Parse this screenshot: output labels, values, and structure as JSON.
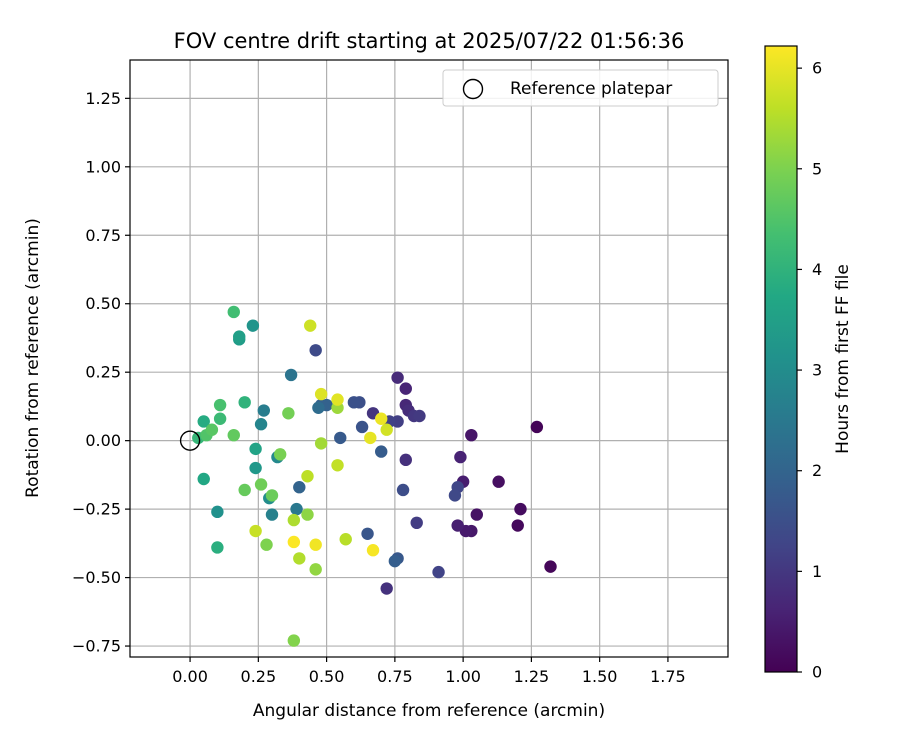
{
  "chart_data": {
    "type": "scatter",
    "title": "FOV centre drift starting at 2025/07/22 01:56:36",
    "xlabel": "Angular distance from reference (arcmin)",
    "ylabel": "Rotation from reference (arcmin)",
    "xlim": [
      -0.22,
      1.97
    ],
    "ylim": [
      -0.79,
      1.39
    ],
    "x_ticks": [
      0.0,
      0.25,
      0.5,
      0.75,
      1.0,
      1.25,
      1.5,
      1.75
    ],
    "x_tick_labels": [
      "0.00",
      "0.25",
      "0.50",
      "0.75",
      "1.00",
      "1.25",
      "1.50",
      "1.75"
    ],
    "y_ticks": [
      1.25,
      1.0,
      0.75,
      0.5,
      0.25,
      0.0,
      -0.25,
      -0.5,
      -0.75
    ],
    "y_tick_labels": [
      "1.25",
      "1.00",
      "0.75",
      "0.50",
      "0.25",
      "0.00",
      "−0.25",
      "−0.50",
      "−0.75"
    ],
    "grid": true,
    "legend": {
      "placement": "top-right",
      "entries": [
        "Reference platepar"
      ]
    },
    "reference_point": {
      "x": 0.0,
      "y": 0.0
    },
    "colorbar": {
      "label": "Hours from first FF file",
      "range": [
        0,
        6.22
      ],
      "ticks": [
        0,
        1,
        2,
        3,
        4,
        5,
        6
      ],
      "tick_labels": [
        "0",
        "1",
        "2",
        "3",
        "4",
        "5",
        "6"
      ],
      "colormap": "viridis"
    },
    "points": [
      {
        "x": 1.27,
        "y": 0.05,
        "h": 0.05
      },
      {
        "x": 1.32,
        "y": -0.46,
        "h": 0.1
      },
      {
        "x": 1.2,
        "y": -0.31,
        "h": 0.15
      },
      {
        "x": 1.21,
        "y": -0.25,
        "h": 0.2
      },
      {
        "x": 1.13,
        "y": -0.15,
        "h": 0.25
      },
      {
        "x": 1.05,
        "y": -0.27,
        "h": 0.3
      },
      {
        "x": 1.03,
        "y": 0.02,
        "h": 0.35
      },
      {
        "x": 1.03,
        "y": -0.33,
        "h": 0.4
      },
      {
        "x": 1.01,
        "y": -0.33,
        "h": 0.45
      },
      {
        "x": 1.0,
        "y": -0.15,
        "h": 0.5
      },
      {
        "x": 0.98,
        "y": -0.31,
        "h": 0.55
      },
      {
        "x": 0.99,
        "y": -0.06,
        "h": 0.6
      },
      {
        "x": 0.79,
        "y": 0.19,
        "h": 0.65
      },
      {
        "x": 0.79,
        "y": 0.13,
        "h": 0.7
      },
      {
        "x": 0.76,
        "y": 0.23,
        "h": 0.75
      },
      {
        "x": 0.8,
        "y": 0.11,
        "h": 0.8
      },
      {
        "x": 0.79,
        "y": -0.07,
        "h": 0.85
      },
      {
        "x": 0.72,
        "y": -0.54,
        "h": 0.9
      },
      {
        "x": 0.67,
        "y": 0.1,
        "h": 0.95
      },
      {
        "x": 0.82,
        "y": 0.09,
        "h": 1.0
      },
      {
        "x": 0.84,
        "y": 0.09,
        "h": 1.05
      },
      {
        "x": 0.83,
        "y": -0.3,
        "h": 1.1
      },
      {
        "x": 0.76,
        "y": 0.07,
        "h": 1.15
      },
      {
        "x": 0.73,
        "y": 0.07,
        "h": 1.2
      },
      {
        "x": 0.91,
        "y": -0.48,
        "h": 1.25
      },
      {
        "x": 0.98,
        "y": -0.17,
        "h": 1.3
      },
      {
        "x": 0.97,
        "y": -0.2,
        "h": 1.35
      },
      {
        "x": 0.46,
        "y": 0.33,
        "h": 1.4
      },
      {
        "x": 0.78,
        "y": -0.18,
        "h": 1.45
      },
      {
        "x": 0.62,
        "y": 0.14,
        "h": 1.5
      },
      {
        "x": 0.6,
        "y": 0.14,
        "h": 1.55
      },
      {
        "x": 0.63,
        "y": 0.05,
        "h": 1.6
      },
      {
        "x": 0.65,
        "y": -0.34,
        "h": 1.65
      },
      {
        "x": 0.76,
        "y": -0.43,
        "h": 1.7
      },
      {
        "x": 0.55,
        "y": 0.01,
        "h": 1.75
      },
      {
        "x": 0.7,
        "y": -0.04,
        "h": 1.8
      },
      {
        "x": 0.75,
        "y": -0.44,
        "h": 1.85
      },
      {
        "x": 0.48,
        "y": 0.13,
        "h": 1.9
      },
      {
        "x": 0.5,
        "y": 0.13,
        "h": 1.95
      },
      {
        "x": 0.4,
        "y": -0.17,
        "h": 2.0
      },
      {
        "x": 0.47,
        "y": 0.12,
        "h": 2.2
      },
      {
        "x": 0.37,
        "y": 0.24,
        "h": 2.4
      },
      {
        "x": 0.39,
        "y": -0.25,
        "h": 2.5
      },
      {
        "x": 0.27,
        "y": 0.11,
        "h": 2.6
      },
      {
        "x": 0.3,
        "y": -0.27,
        "h": 2.7
      },
      {
        "x": 0.26,
        "y": 0.06,
        "h": 2.8
      },
      {
        "x": 0.32,
        "y": -0.06,
        "h": 2.9
      },
      {
        "x": 0.29,
        "y": -0.21,
        "h": 3.0
      },
      {
        "x": 0.1,
        "y": -0.26,
        "h": 3.1
      },
      {
        "x": 0.23,
        "y": 0.42,
        "h": 3.2
      },
      {
        "x": 0.24,
        "y": -0.1,
        "h": 3.3
      },
      {
        "x": 0.18,
        "y": 0.37,
        "h": 3.4
      },
      {
        "x": 0.18,
        "y": 0.38,
        "h": 3.5
      },
      {
        "x": 0.24,
        "y": -0.03,
        "h": 3.6
      },
      {
        "x": 0.05,
        "y": -0.14,
        "h": 3.7
      },
      {
        "x": 0.05,
        "y": 0.07,
        "h": 3.8
      },
      {
        "x": 0.1,
        "y": -0.39,
        "h": 3.9
      },
      {
        "x": 0.2,
        "y": 0.14,
        "h": 4.0
      },
      {
        "x": 0.03,
        "y": 0.01,
        "h": 4.1
      },
      {
        "x": 0.11,
        "y": 0.08,
        "h": 4.2
      },
      {
        "x": 0.16,
        "y": 0.47,
        "h": 4.3
      },
      {
        "x": 0.11,
        "y": 0.13,
        "h": 4.4
      },
      {
        "x": 0.06,
        "y": 0.02,
        "h": 4.5
      },
      {
        "x": 0.08,
        "y": 0.04,
        "h": 4.6
      },
      {
        "x": 0.16,
        "y": 0.02,
        "h": 4.7
      },
      {
        "x": 0.2,
        "y": -0.18,
        "h": 4.75
      },
      {
        "x": 0.3,
        "y": -0.2,
        "h": 4.8
      },
      {
        "x": 0.26,
        "y": -0.16,
        "h": 4.85
      },
      {
        "x": 0.36,
        "y": 0.1,
        "h": 4.9
      },
      {
        "x": 0.33,
        "y": -0.05,
        "h": 4.95
      },
      {
        "x": 0.28,
        "y": -0.38,
        "h": 5.0
      },
      {
        "x": 0.38,
        "y": -0.73,
        "h": 5.05
      },
      {
        "x": 0.43,
        "y": -0.27,
        "h": 5.15
      },
      {
        "x": 0.46,
        "y": -0.47,
        "h": 5.2
      },
      {
        "x": 0.54,
        "y": 0.12,
        "h": 5.3
      },
      {
        "x": 0.48,
        "y": -0.01,
        "h": 5.35
      },
      {
        "x": 0.38,
        "y": -0.29,
        "h": 5.45
      },
      {
        "x": 0.4,
        "y": -0.43,
        "h": 5.5
      },
      {
        "x": 0.57,
        "y": -0.36,
        "h": 5.55
      },
      {
        "x": 0.43,
        "y": -0.13,
        "h": 5.6
      },
      {
        "x": 0.54,
        "y": -0.09,
        "h": 5.65
      },
      {
        "x": 0.24,
        "y": -0.33,
        "h": 5.7
      },
      {
        "x": 0.44,
        "y": 0.42,
        "h": 5.75
      },
      {
        "x": 0.72,
        "y": 0.04,
        "h": 5.8
      },
      {
        "x": 0.48,
        "y": 0.17,
        "h": 5.9
      },
      {
        "x": 0.54,
        "y": 0.15,
        "h": 5.95
      },
      {
        "x": 0.66,
        "y": 0.01,
        "h": 6.0
      },
      {
        "x": 0.7,
        "y": 0.08,
        "h": 6.05
      },
      {
        "x": 0.46,
        "y": -0.38,
        "h": 6.1
      },
      {
        "x": 0.67,
        "y": -0.4,
        "h": 6.15
      },
      {
        "x": 0.38,
        "y": -0.37,
        "h": 6.2
      }
    ]
  }
}
